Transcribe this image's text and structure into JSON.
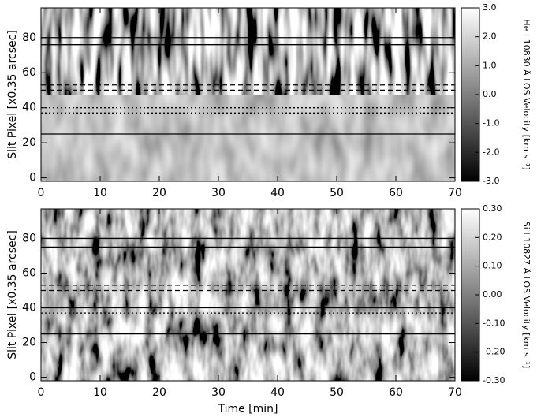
{
  "chart_data": [
    {
      "type": "heatmap",
      "ylabel": "Slit Pixel [x0.35 arcsec]",
      "xlim": [
        0,
        70
      ],
      "xticks": [
        0,
        10,
        20,
        30,
        40,
        50,
        60,
        70
      ],
      "ylim": [
        -2,
        97
      ],
      "yticks": [
        0,
        20,
        40,
        60,
        80
      ],
      "hlines": [
        {
          "value": 80,
          "style": "solid"
        },
        {
          "value": 76,
          "style": "solid"
        },
        {
          "value": 53,
          "style": "dashed"
        },
        {
          "value": 50,
          "style": "dashed"
        },
        {
          "value": 40,
          "style": "dotted"
        },
        {
          "value": 37,
          "style": "dotted"
        },
        {
          "value": 25,
          "style": "solid"
        }
      ],
      "colorbar": {
        "label": "He I 10830 Å LOS Velocity [km s⁻¹]",
        "lim": [
          -3,
          3
        ],
        "ticks": [
          {
            "value": 3,
            "label": "3.0"
          },
          {
            "value": 2,
            "label": "2.0"
          },
          {
            "value": 1,
            "label": "1.0"
          },
          {
            "value": 0,
            "label": "0.0"
          },
          {
            "value": -1,
            "label": "-1.0"
          },
          {
            "value": -2,
            "label": "-2.0"
          },
          {
            "value": -3,
            "label": "-3.0"
          }
        ]
      }
    },
    {
      "type": "heatmap",
      "ylabel": "Slit Pixel [x0.35 arcsec]",
      "xlabel": "Time [min]",
      "xlim": [
        0,
        70
      ],
      "xticks": [
        0,
        10,
        20,
        30,
        40,
        50,
        60,
        70
      ],
      "ylim": [
        -2,
        97
      ],
      "yticks": [
        0,
        20,
        40,
        60,
        80
      ],
      "hlines": [
        {
          "value": 80,
          "style": "solid"
        },
        {
          "value": 75,
          "style": "solid"
        },
        {
          "value": 53,
          "style": "dashed"
        },
        {
          "value": 50,
          "style": "dashed"
        },
        {
          "value": 40,
          "style": "solid"
        },
        {
          "value": 37,
          "style": "dotted"
        },
        {
          "value": 25,
          "style": "solid"
        }
      ],
      "colorbar": {
        "label": "Si I 10827 Å LOS Velocity [km s⁻¹]",
        "lim": [
          -0.3,
          0.3
        ],
        "ticks": [
          {
            "value": 0.3,
            "label": "0.30"
          },
          {
            "value": 0.2,
            "label": "0.20"
          },
          {
            "value": 0.1,
            "label": "0.10"
          },
          {
            "value": 0,
            "label": "0.00"
          },
          {
            "value": -0.1,
            "label": "-0.10"
          },
          {
            "value": -0.2,
            "label": "-0.20"
          },
          {
            "value": -0.3,
            "label": "-0.30"
          }
        ]
      }
    }
  ]
}
